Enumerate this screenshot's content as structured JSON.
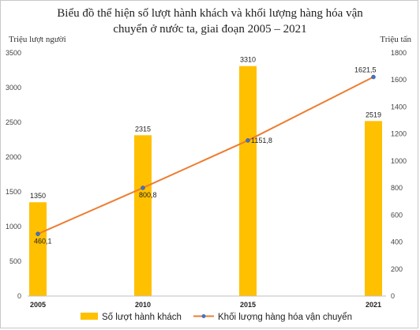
{
  "chart_data": {
    "type": "bar",
    "title": "Biểu đồ thể hiện số lượt hành khách và khối lượng hàng hóa vận chuyển ở nước ta, giai đoạn 2005 – 2021",
    "title_lines": [
      "Biểu đồ thể hiện số lượt hành khách và khối lượng hàng hóa vận",
      "chuyển ở nước ta, giai đoạn 2005 – 2021"
    ],
    "ylabel_left": "Triệu lượt người",
    "ylabel_right": "Triệu tấn",
    "categories": [
      "2005",
      "2010",
      "2015",
      "2021"
    ],
    "ylim_left": [
      0,
      3500
    ],
    "ylim_right": [
      0,
      1800
    ],
    "yticks_left": [
      "0",
      "500",
      "1000",
      "1500",
      "2000",
      "2500",
      "3000",
      "3500"
    ],
    "yticks_right": [
      "0",
      "200",
      "400",
      "600",
      "800",
      "1000",
      "1200",
      "1400",
      "1600",
      "1800"
    ],
    "series": [
      {
        "name": "Số lượt hành khách",
        "type": "bar",
        "axis": "left",
        "values": [
          1350,
          2315,
          3310,
          2519
        ],
        "labels": [
          "1350",
          "2315",
          "3310",
          "2519"
        ],
        "color": "#FFC000"
      },
      {
        "name": "Khối lượng hàng hóa vận chuyển",
        "type": "line",
        "axis": "right",
        "values": [
          460.1,
          800.8,
          1151.8,
          1621.5
        ],
        "labels": [
          "460,1",
          "800,8",
          "1151,8",
          "1621,5"
        ],
        "color": "#ED7D31",
        "marker_color": "#4472C4"
      }
    ],
    "grid": false,
    "legend": "bottom"
  }
}
